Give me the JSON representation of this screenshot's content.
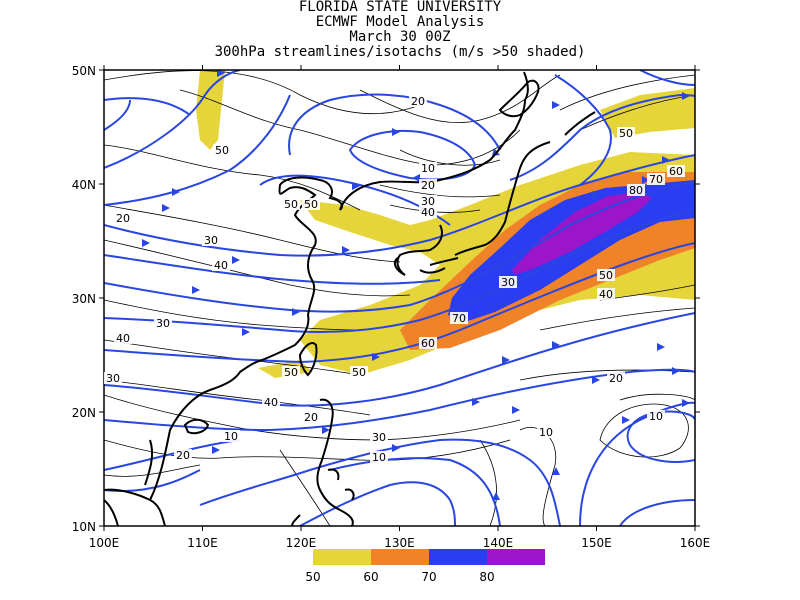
{
  "titles": [
    "FLORIDA STATE UNIVERSITY",
    "ECMWF Model Analysis",
    "March 30 00Z",
    "300hPa streamlines/isotachs (m/s >50 shaded)"
  ],
  "axes": {
    "x_ticks": [
      "100E",
      "110E",
      "120E",
      "130E",
      "140E",
      "150E",
      "160E"
    ],
    "y_ticks": [
      "10N",
      "20N",
      "30N",
      "40N",
      "50N"
    ]
  },
  "colorbar": {
    "colors": [
      "#e6d53a",
      "#f0822a",
      "#2a3df0",
      "#9b16c8"
    ],
    "labels": [
      "50",
      "60",
      "70",
      "80"
    ]
  },
  "contour_labels": [
    "20",
    "50",
    "10",
    "20",
    "30",
    "40",
    "50",
    "20",
    "30",
    "40",
    "30",
    "40",
    "30",
    "40",
    "20",
    "10",
    "30",
    "20",
    "10",
    "50",
    "50",
    "60",
    "70",
    "30",
    "80",
    "70",
    "60",
    "50",
    "50",
    "40",
    "20",
    "10",
    "10",
    "50"
  ],
  "colors": {
    "streamline": "#2a46e0",
    "coast": "#000000",
    "contour": "#000000"
  }
}
